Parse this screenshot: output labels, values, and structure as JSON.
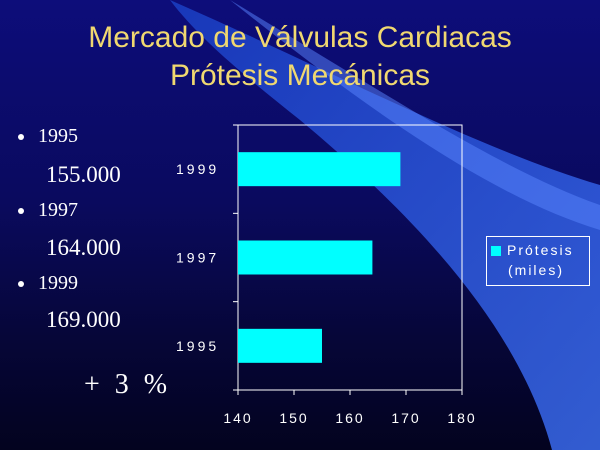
{
  "title": {
    "line1": "Mercado de Válvulas Cardiacas",
    "line2": "Prótesis Mecánicas"
  },
  "bullets": [
    {
      "year": "1995",
      "value": "155.000"
    },
    {
      "year": "1997",
      "value": "164.000"
    },
    {
      "year": "1999",
      "value": "169.000"
    }
  ],
  "growth_text": "+ 3 %",
  "colors": {
    "background": "#0a0a5e",
    "title": "#f0d870",
    "bar": "#00ffff",
    "text": "#ffffff",
    "swoosh": "#2f5fe0"
  },
  "chart_data": {
    "type": "bar",
    "orientation": "horizontal",
    "categories": [
      "1995",
      "1997",
      "1999"
    ],
    "series": [
      {
        "name": "Prótesis (miles)",
        "values": [
          155,
          164,
          169
        ]
      }
    ],
    "xlim": [
      140,
      180
    ],
    "xticks": [
      "140",
      "150",
      "160",
      "170",
      "180"
    ],
    "legend": {
      "line1": "Prótesis",
      "line2": "(miles)",
      "placement": "right"
    },
    "grid": false
  }
}
